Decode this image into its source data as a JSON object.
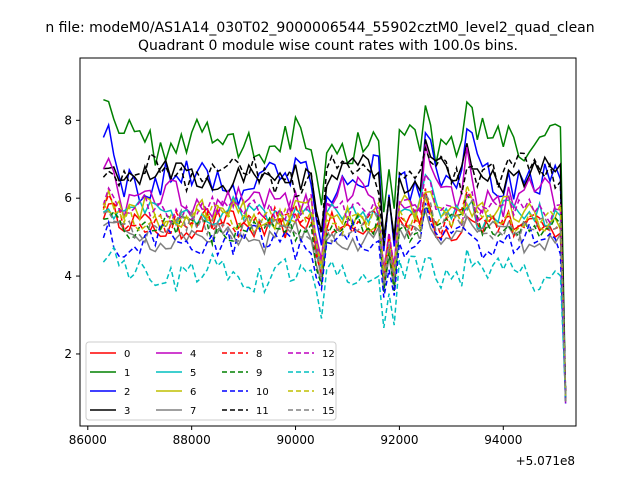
{
  "chart_data": {
    "type": "line",
    "suptitle": "n file: modeM0/AS1A14_030T02_9000006544_55902cztM0_level2_quad_clean",
    "title": "Quadrant 0 module wise count rates with 100.0s bins.",
    "xlabel": "",
    "ylabel": "",
    "x_offset_label": "+5.071e8",
    "xlim": [
      85850,
      95400
    ],
    "ylim": [
      0.15,
      9.6
    ],
    "xticks": [
      86000,
      88000,
      90000,
      92000,
      94000
    ],
    "xtick_labels": [
      "86000",
      "88000",
      "90000",
      "92000",
      "94000"
    ],
    "yticks": [
      2,
      4,
      6,
      8
    ],
    "ytick_labels": [
      "2",
      "4",
      "6",
      "8"
    ],
    "x_start": 86300,
    "x_step": 100,
    "grid": false,
    "legend": {
      "placement": "lower-left",
      "columns": 4
    },
    "series": [
      {
        "name": "0",
        "color": "#ff0000",
        "dashed": false,
        "base": 5.3,
        "amp": 0.3,
        "drop": 3.6
      },
      {
        "name": "1",
        "color": "#008000",
        "dashed": false,
        "base": 7.5,
        "amp": 0.45,
        "drop": 5.4
      },
      {
        "name": "2",
        "color": "#0000ff",
        "dashed": false,
        "base": 6.5,
        "amp": 0.45,
        "drop": 4.4
      },
      {
        "name": "3",
        "color": "#000000",
        "dashed": false,
        "base": 6.6,
        "amp": 0.35,
        "drop": 4.8
      },
      {
        "name": "4",
        "color": "#bf00bf",
        "dashed": false,
        "base": 6.0,
        "amp": 0.4,
        "drop": 4.0
      },
      {
        "name": "5",
        "color": "#00bfbf",
        "dashed": false,
        "base": 5.6,
        "amp": 0.3,
        "drop": 3.8
      },
      {
        "name": "6",
        "color": "#bfbf00",
        "dashed": false,
        "base": 5.6,
        "amp": 0.35,
        "drop": 3.9
      },
      {
        "name": "7",
        "color": "#808080",
        "dashed": false,
        "base": 5.0,
        "amp": 0.3,
        "drop": 3.5
      },
      {
        "name": "8",
        "color": "#ff0000",
        "dashed": true,
        "base": 5.4,
        "amp": 0.3,
        "drop": 3.7
      },
      {
        "name": "9",
        "color": "#008000",
        "dashed": true,
        "base": 5.2,
        "amp": 0.3,
        "drop": 3.4
      },
      {
        "name": "10",
        "color": "#0000ff",
        "dashed": true,
        "base": 4.9,
        "amp": 0.35,
        "drop": 3.3
      },
      {
        "name": "11",
        "color": "#000000",
        "dashed": true,
        "base": 6.6,
        "amp": 0.4,
        "drop": 4.6
      },
      {
        "name": "12",
        "color": "#bf00bf",
        "dashed": true,
        "base": 5.7,
        "amp": 0.3,
        "drop": 3.9
      },
      {
        "name": "13",
        "color": "#00bfbf",
        "dashed": true,
        "base": 4.1,
        "amp": 0.35,
        "drop": 2.5
      },
      {
        "name": "14",
        "color": "#bfbf00",
        "dashed": true,
        "base": 5.5,
        "amp": 0.3,
        "drop": 3.8
      },
      {
        "name": "15",
        "color": "#808080",
        "dashed": true,
        "base": 5.3,
        "amp": 0.3,
        "drop": 3.6
      }
    ]
  }
}
